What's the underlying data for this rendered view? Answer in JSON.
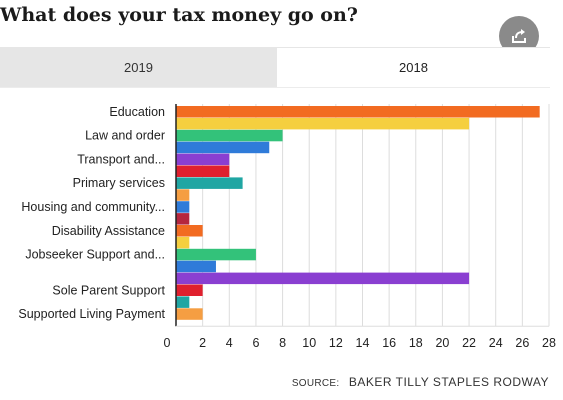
{
  "title": "What does your tax money go on?",
  "share_icon": "share-icon",
  "tabs": [
    {
      "label": "2019",
      "active": false
    },
    {
      "label": "2018",
      "active": true
    }
  ],
  "source": {
    "label": "SOURCE:",
    "name": "BAKER TILLY STAPLES RODWAY"
  },
  "chart_data": {
    "type": "bar",
    "orientation": "horizontal",
    "title": "",
    "xlabel": "",
    "ylabel": "",
    "xlim": [
      0,
      28
    ],
    "xticks": [
      0,
      2,
      4,
      6,
      8,
      10,
      12,
      14,
      16,
      18,
      20,
      22,
      24,
      26,
      28
    ],
    "grid": true,
    "bars": [
      {
        "label": "Education",
        "value": 27.3,
        "color": "#f26b21"
      },
      {
        "label": "",
        "value": 22.0,
        "color": "#f5cf3f"
      },
      {
        "label": "Law and order",
        "value": 8.0,
        "color": "#33c27a"
      },
      {
        "label": "",
        "value": 7.0,
        "color": "#2f7bd9"
      },
      {
        "label": "Transport and...",
        "value": 4.0,
        "color": "#8a3fd1"
      },
      {
        "label": "",
        "value": 4.0,
        "color": "#e0202e"
      },
      {
        "label": "Primary services",
        "value": 5.0,
        "color": "#20a6a3"
      },
      {
        "label": "",
        "value": 1.0,
        "color": "#f59e42"
      },
      {
        "label": "Housing and community...",
        "value": 1.0,
        "color": "#2f7bd9"
      },
      {
        "label": "",
        "value": 1.0,
        "color": "#b5263f"
      },
      {
        "label": "Disability Assistance",
        "value": 2.0,
        "color": "#f26b21"
      },
      {
        "label": "",
        "value": 1.0,
        "color": "#f5cf3f"
      },
      {
        "label": "Jobseeker Support and...",
        "value": 6.0,
        "color": "#33c27a"
      },
      {
        "label": "",
        "value": 3.0,
        "color": "#2f7bd9"
      },
      {
        "label": "",
        "value": 22.0,
        "color": "#8a3fd1"
      },
      {
        "label": "Sole Parent Support",
        "value": 2.0,
        "color": "#e0202e"
      },
      {
        "label": "",
        "value": 1.0,
        "color": "#20a6a3"
      },
      {
        "label": "Supported Living Payment",
        "value": 2.0,
        "color": "#f59e42"
      }
    ]
  }
}
